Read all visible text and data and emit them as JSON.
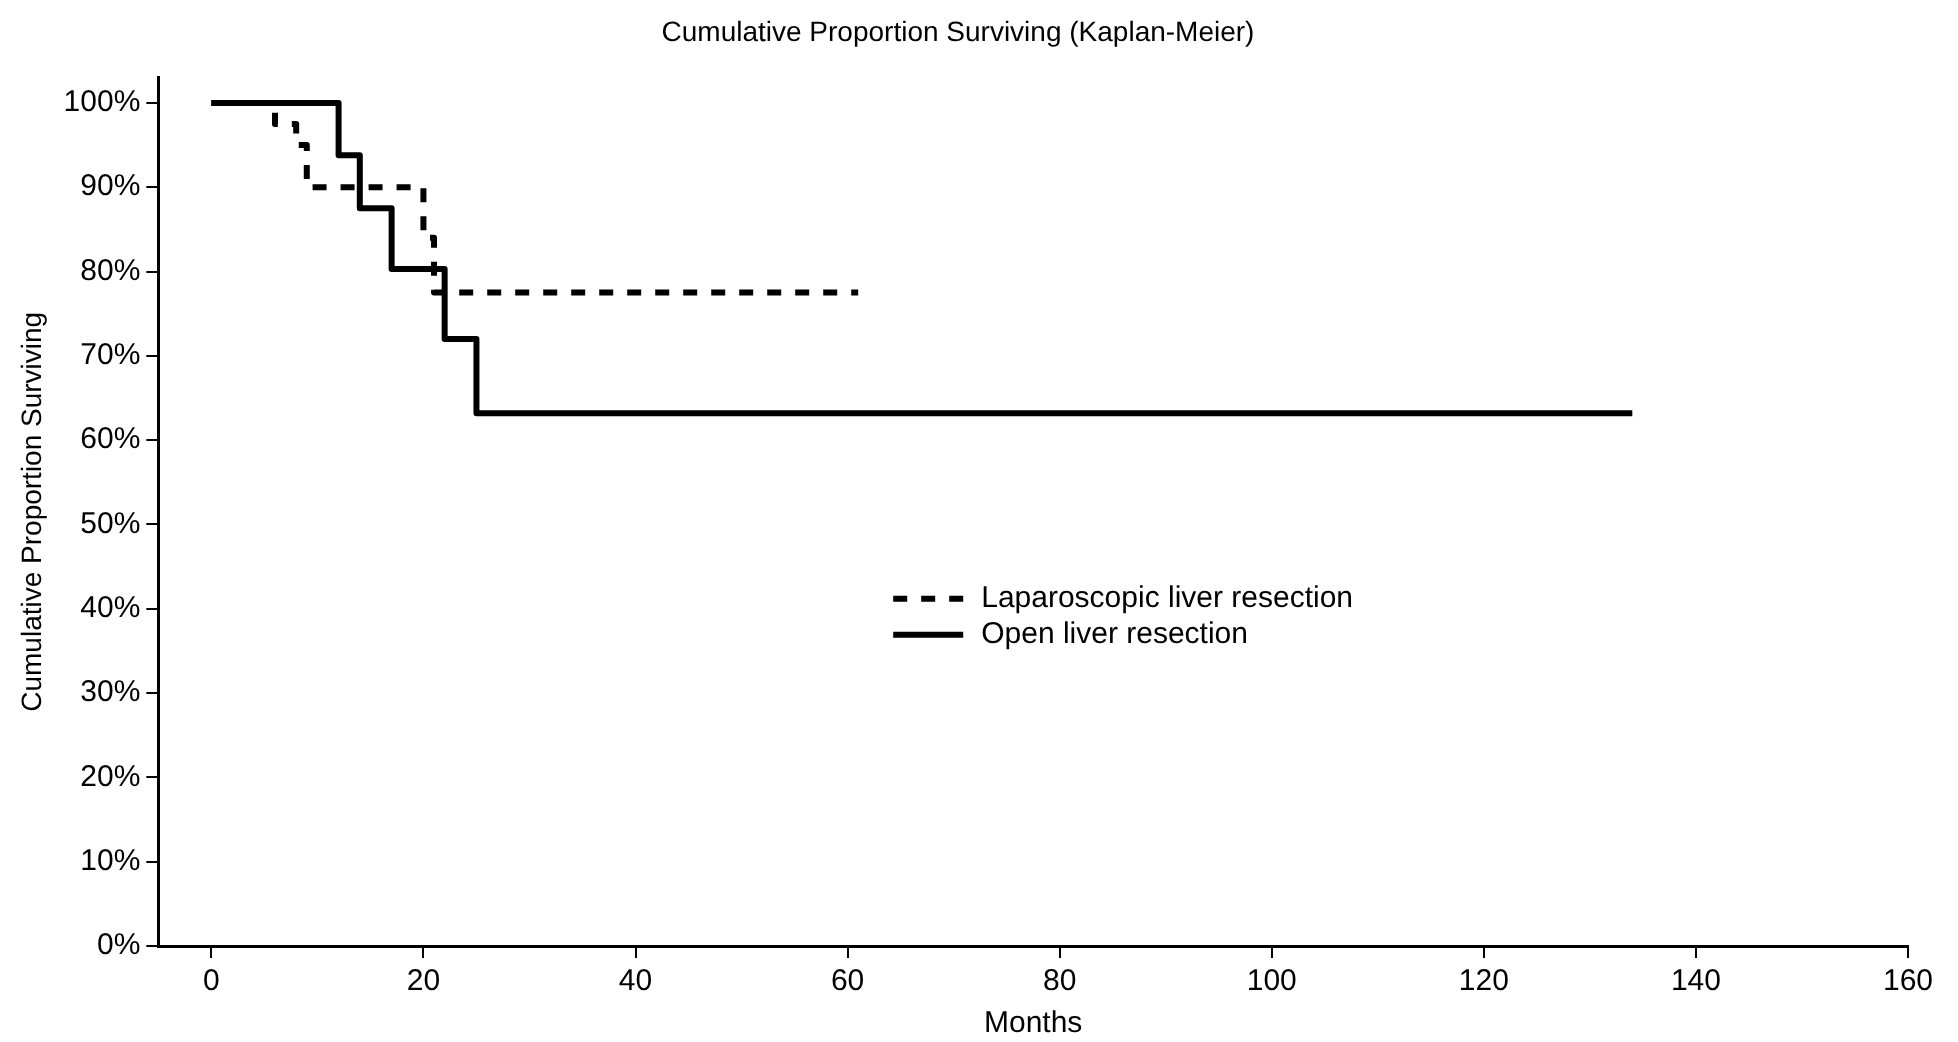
{
  "chart_data": {
    "type": "step",
    "title": "Cumulative Proportion Surviving (Kaplan-Meier)",
    "xlabel": "Months",
    "ylabel": "Cumulative Proportion Surviving",
    "series": [
      {
        "name": "Laparoscopic liver resection",
        "color": "#000000",
        "line_style": "dashed",
        "x": [
          0,
          6,
          8,
          9,
          20,
          21,
          61
        ],
        "values": [
          100,
          97.5,
          95,
          90,
          84,
          77.5,
          77.5
        ]
      },
      {
        "name": "Open liver resection",
        "color": "#000000",
        "line_style": "solid",
        "x": [
          0,
          12,
          14,
          17,
          22,
          25,
          134
        ],
        "values": [
          100,
          93.8,
          87.5,
          80.3,
          72,
          63.2,
          63.2
        ]
      }
    ],
    "xlim": [
      -5,
      160
    ],
    "xticks": [
      0,
      20,
      40,
      60,
      80,
      100,
      120,
      140,
      160
    ],
    "ylim": [
      0,
      103
    ],
    "yticks": [
      {
        "value": 0,
        "label": "0%"
      },
      {
        "value": 10,
        "label": "10%"
      },
      {
        "value": 20,
        "label": "20%"
      },
      {
        "value": 30,
        "label": "30%"
      },
      {
        "value": 40,
        "label": "40%"
      },
      {
        "value": 50,
        "label": "50%"
      },
      {
        "value": 60,
        "label": "60%"
      },
      {
        "value": 70,
        "label": "70%"
      },
      {
        "value": 80,
        "label": "80%"
      },
      {
        "value": 90,
        "label": "90%"
      },
      {
        "value": 100,
        "label": "100%"
      }
    ],
    "grid": false,
    "legend": "center",
    "marker": "none"
  }
}
